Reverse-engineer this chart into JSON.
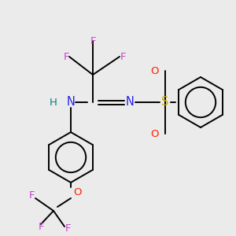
{
  "bg_color": "#EBEBEB",
  "fig_size": [
    3.0,
    3.0
  ],
  "dpi": 100,
  "colors": {
    "black": "#000000",
    "F": "#CC44CC",
    "N": "#2222EE",
    "H": "#008080",
    "S": "#CCAA00",
    "O": "#FF2200"
  },
  "font_main": 9.5
}
